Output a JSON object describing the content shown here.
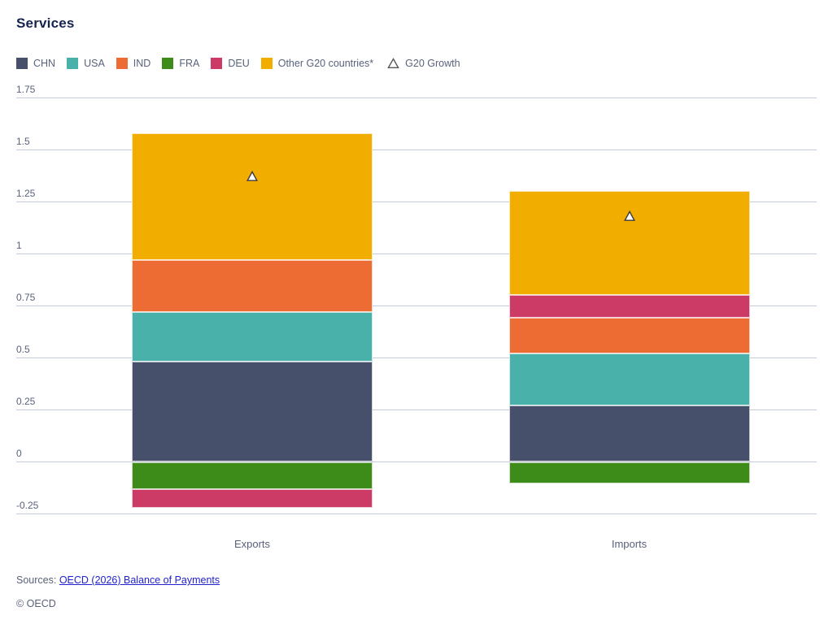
{
  "page": {
    "title": "Services",
    "sources_label": "Sources:",
    "sources_link": "OECD (2026) Balance of Payments",
    "copyright": "© OECD",
    "colors": {
      "title_text": "#17234d",
      "axis_text": "#59627a",
      "gridline": "#c5cbd7",
      "link": "#2222cc"
    }
  },
  "chart_data": {
    "type": "bar",
    "stacked": true,
    "title": "Services",
    "categories": [
      "Exports",
      "Imports"
    ],
    "series": [
      {
        "name": "CHN",
        "color": "#47506b",
        "values": [
          0.48,
          0.27
        ]
      },
      {
        "name": "USA",
        "color": "#49b1a9",
        "values": [
          0.24,
          0.25
        ]
      },
      {
        "name": "IND",
        "color": "#ed6c33",
        "values": [
          0.25,
          0.17
        ]
      },
      {
        "name": "FRA",
        "color": "#3d8b19",
        "values": [
          -0.13,
          -0.1
        ]
      },
      {
        "name": "DEU",
        "color": "#cb3b66",
        "values": [
          -0.09,
          0.11
        ]
      },
      {
        "name": "Other G20 countries*",
        "color": "#f1ad00",
        "values": [
          0.61,
          0.5
        ]
      }
    ],
    "markers": {
      "name": "G20 Growth",
      "shape": "triangle-up",
      "fill": "#ffffff",
      "stroke": "#3c3c3c",
      "values": [
        1.37,
        1.18
      ]
    },
    "yticks": [
      "1.75",
      "1.5",
      "1.25",
      "1",
      "0.75",
      "0.5",
      "0.25",
      "0",
      "-0.25"
    ],
    "ylim": [
      -0.25,
      1.75
    ],
    "grid": true,
    "legend_position": "top-left"
  }
}
